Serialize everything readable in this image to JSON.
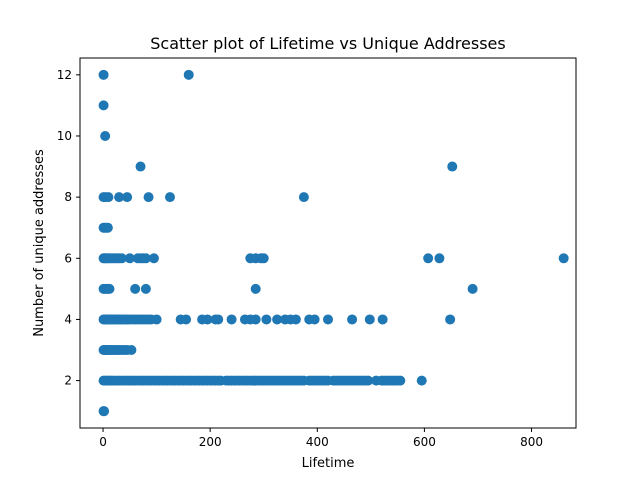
{
  "chart_data": {
    "type": "scatter",
    "title": "Scatter plot of Lifetime vs Unique Addresses",
    "xlabel": "Lifetime",
    "ylabel": "Number of unique addresses",
    "xlim": [
      -43,
      883
    ],
    "ylim": [
      0.45,
      12.55
    ],
    "xticks": [
      0,
      200,
      400,
      600,
      800
    ],
    "yticks": [
      2,
      4,
      6,
      8,
      10,
      12
    ],
    "grid": false,
    "marker_color": "#1f77b4",
    "points": [
      [
        1,
        12
      ],
      [
        160,
        12
      ],
      [
        1,
        11
      ],
      [
        4,
        10
      ],
      [
        70,
        9
      ],
      [
        652,
        9
      ],
      [
        1,
        8
      ],
      [
        5,
        8
      ],
      [
        10,
        8
      ],
      [
        30,
        8
      ],
      [
        45,
        8
      ],
      [
        85,
        8
      ],
      [
        125,
        8
      ],
      [
        375,
        8
      ],
      [
        1,
        7
      ],
      [
        3,
        7
      ],
      [
        6,
        7
      ],
      [
        9,
        7
      ],
      [
        1,
        6
      ],
      [
        3,
        6
      ],
      [
        5,
        6
      ],
      [
        8,
        6
      ],
      [
        11,
        6
      ],
      [
        14,
        6
      ],
      [
        18,
        6
      ],
      [
        22,
        6
      ],
      [
        26,
        6
      ],
      [
        30,
        6
      ],
      [
        35,
        6
      ],
      [
        50,
        6
      ],
      [
        65,
        6
      ],
      [
        70,
        6
      ],
      [
        75,
        6
      ],
      [
        80,
        6
      ],
      [
        95,
        6
      ],
      [
        275,
        6
      ],
      [
        285,
        6
      ],
      [
        295,
        6
      ],
      [
        300,
        6
      ],
      [
        607,
        6
      ],
      [
        628,
        6
      ],
      [
        860,
        6
      ],
      [
        1,
        5
      ],
      [
        3,
        5
      ],
      [
        6,
        5
      ],
      [
        9,
        5
      ],
      [
        12,
        5
      ],
      [
        60,
        5
      ],
      [
        80,
        5
      ],
      [
        285,
        5
      ],
      [
        690,
        5
      ],
      [
        1,
        4
      ],
      [
        3,
        4
      ],
      [
        5,
        4
      ],
      [
        7,
        4
      ],
      [
        9,
        4
      ],
      [
        11,
        4
      ],
      [
        14,
        4
      ],
      [
        17,
        4
      ],
      [
        20,
        4
      ],
      [
        23,
        4
      ],
      [
        26,
        4
      ],
      [
        29,
        4
      ],
      [
        32,
        4
      ],
      [
        35,
        4
      ],
      [
        38,
        4
      ],
      [
        42,
        4
      ],
      [
        46,
        4
      ],
      [
        50,
        4
      ],
      [
        55,
        4
      ],
      [
        60,
        4
      ],
      [
        65,
        4
      ],
      [
        70,
        4
      ],
      [
        75,
        4
      ],
      [
        80,
        4
      ],
      [
        85,
        4
      ],
      [
        90,
        4
      ],
      [
        100,
        4
      ],
      [
        145,
        4
      ],
      [
        155,
        4
      ],
      [
        185,
        4
      ],
      [
        195,
        4
      ],
      [
        210,
        4
      ],
      [
        215,
        4
      ],
      [
        240,
        4
      ],
      [
        265,
        4
      ],
      [
        275,
        4
      ],
      [
        285,
        4
      ],
      [
        305,
        4
      ],
      [
        325,
        4
      ],
      [
        340,
        4
      ],
      [
        350,
        4
      ],
      [
        360,
        4
      ],
      [
        385,
        4
      ],
      [
        395,
        4
      ],
      [
        420,
        4
      ],
      [
        465,
        4
      ],
      [
        498,
        4
      ],
      [
        522,
        4
      ],
      [
        648,
        4
      ],
      [
        1,
        3
      ],
      [
        3,
        3
      ],
      [
        5,
        3
      ],
      [
        7,
        3
      ],
      [
        9,
        3
      ],
      [
        12,
        3
      ],
      [
        15,
        3
      ],
      [
        18,
        3
      ],
      [
        22,
        3
      ],
      [
        26,
        3
      ],
      [
        30,
        3
      ],
      [
        35,
        3
      ],
      [
        40,
        3
      ],
      [
        45,
        3
      ],
      [
        53,
        3
      ],
      [
        1,
        2
      ],
      [
        4,
        2
      ],
      [
        8,
        2
      ],
      [
        12,
        2
      ],
      [
        16,
        2
      ],
      [
        20,
        2
      ],
      [
        25,
        2
      ],
      [
        30,
        2
      ],
      [
        35,
        2
      ],
      [
        40,
        2
      ],
      [
        45,
        2
      ],
      [
        50,
        2
      ],
      [
        55,
        2
      ],
      [
        60,
        2
      ],
      [
        65,
        2
      ],
      [
        70,
        2
      ],
      [
        75,
        2
      ],
      [
        80,
        2
      ],
      [
        85,
        2
      ],
      [
        90,
        2
      ],
      [
        95,
        2
      ],
      [
        100,
        2
      ],
      [
        105,
        2
      ],
      [
        110,
        2
      ],
      [
        115,
        2
      ],
      [
        120,
        2
      ],
      [
        125,
        2
      ],
      [
        130,
        2
      ],
      [
        135,
        2
      ],
      [
        140,
        2
      ],
      [
        145,
        2
      ],
      [
        150,
        2
      ],
      [
        155,
        2
      ],
      [
        160,
        2
      ],
      [
        165,
        2
      ],
      [
        170,
        2
      ],
      [
        175,
        2
      ],
      [
        180,
        2
      ],
      [
        185,
        2
      ],
      [
        190,
        2
      ],
      [
        195,
        2
      ],
      [
        200,
        2
      ],
      [
        205,
        2
      ],
      [
        210,
        2
      ],
      [
        215,
        2
      ],
      [
        220,
        2
      ],
      [
        230,
        2
      ],
      [
        235,
        2
      ],
      [
        240,
        2
      ],
      [
        245,
        2
      ],
      [
        250,
        2
      ],
      [
        255,
        2
      ],
      [
        260,
        2
      ],
      [
        265,
        2
      ],
      [
        270,
        2
      ],
      [
        275,
        2
      ],
      [
        280,
        2
      ],
      [
        285,
        2
      ],
      [
        290,
        2
      ],
      [
        295,
        2
      ],
      [
        300,
        2
      ],
      [
        305,
        2
      ],
      [
        310,
        2
      ],
      [
        315,
        2
      ],
      [
        320,
        2
      ],
      [
        325,
        2
      ],
      [
        330,
        2
      ],
      [
        335,
        2
      ],
      [
        340,
        2
      ],
      [
        345,
        2
      ],
      [
        350,
        2
      ],
      [
        355,
        2
      ],
      [
        360,
        2
      ],
      [
        365,
        2
      ],
      [
        370,
        2
      ],
      [
        375,
        2
      ],
      [
        385,
        2
      ],
      [
        390,
        2
      ],
      [
        395,
        2
      ],
      [
        400,
        2
      ],
      [
        405,
        2
      ],
      [
        410,
        2
      ],
      [
        415,
        2
      ],
      [
        420,
        2
      ],
      [
        430,
        2
      ],
      [
        435,
        2
      ],
      [
        440,
        2
      ],
      [
        445,
        2
      ],
      [
        450,
        2
      ],
      [
        455,
        2
      ],
      [
        460,
        2
      ],
      [
        465,
        2
      ],
      [
        470,
        2
      ],
      [
        475,
        2
      ],
      [
        480,
        2
      ],
      [
        485,
        2
      ],
      [
        490,
        2
      ],
      [
        495,
        2
      ],
      [
        510,
        2
      ],
      [
        520,
        2
      ],
      [
        525,
        2
      ],
      [
        530,
        2
      ],
      [
        535,
        2
      ],
      [
        540,
        2
      ],
      [
        545,
        2
      ],
      [
        550,
        2
      ],
      [
        555,
        2
      ],
      [
        595,
        2
      ],
      [
        1,
        1
      ],
      [
        2,
        1
      ]
    ]
  }
}
